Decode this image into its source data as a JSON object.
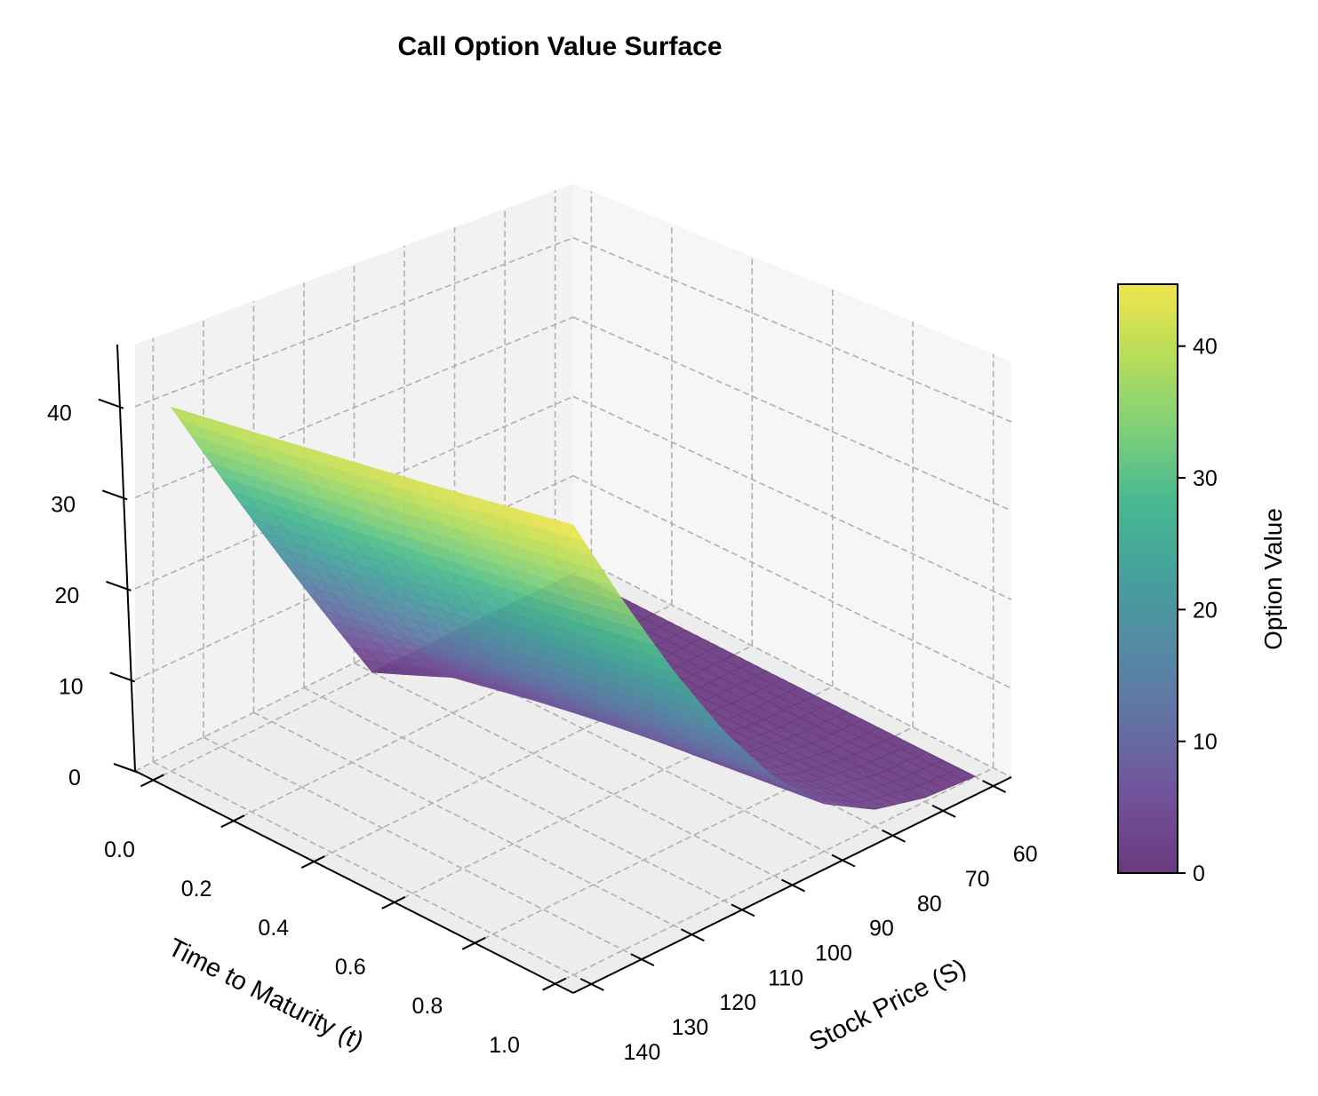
{
  "chart_data": {
    "type": "surface",
    "title": "Call Option Value Surface",
    "xlabel": "Time to Maturity (t)",
    "ylabel": "Stock Price (S)",
    "zlabel": "",
    "colorbar_label": "Option Value",
    "colormap": "viridis",
    "x_ticks": [
      "0.0",
      "0.2",
      "0.4",
      "0.6",
      "0.8",
      "1.0"
    ],
    "y_ticks": [
      "60",
      "70",
      "80",
      "90",
      "100",
      "110",
      "120",
      "130",
      "140"
    ],
    "z_ticks": [
      "0",
      "10",
      "20",
      "30",
      "40"
    ],
    "colorbar_ticks": [
      "0",
      "10",
      "20",
      "30",
      "40"
    ],
    "xlim": [
      0,
      1
    ],
    "ylim": [
      60,
      140
    ],
    "zlim": [
      0,
      47
    ],
    "colorbar_range": [
      0,
      44.7
    ],
    "grid": true,
    "t": [
      0,
      0.2,
      0.4,
      0.6,
      0.8,
      1.0
    ],
    "S": [
      60,
      70,
      80,
      90,
      100,
      110,
      120,
      130,
      140
    ],
    "values": [
      [
        0,
        0,
        0,
        0,
        0,
        10,
        20,
        30,
        40
      ],
      [
        0,
        0,
        0.02,
        0.61,
        4.07,
        11.54,
        21.05,
        31.06,
        40.99
      ],
      [
        0,
        0.003,
        0.25,
        1.77,
        6.03,
        13.28,
        22.29,
        32.05,
        42.03
      ],
      [
        0,
        0.1,
        0.7,
        2.93,
        7.68,
        14.85,
        23.61,
        33.16,
        43.01
      ],
      [
        0.02,
        0.23,
        1.25,
        4.03,
        9.13,
        16.3,
        24.9,
        34.31,
        44.06
      ],
      [
        0.06,
        0.45,
        1.86,
        5.09,
        10.45,
        17.67,
        26.17,
        35.44,
        45.11
      ]
    ]
  }
}
